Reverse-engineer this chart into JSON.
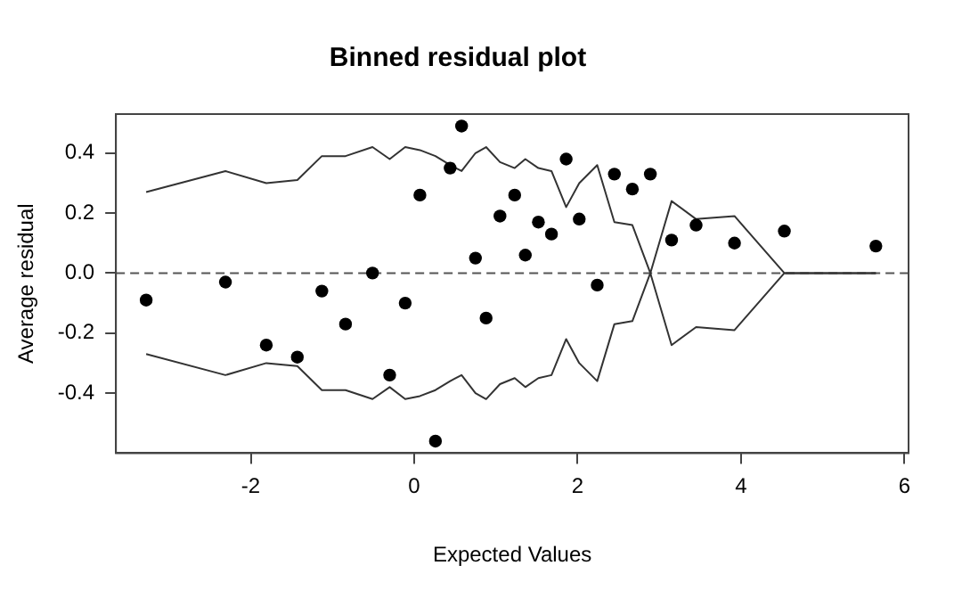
{
  "chart_data": {
    "type": "scatter",
    "title": "Binned residual plot",
    "xlabel": "Expected Values",
    "ylabel": "Average residual",
    "x": [
      -3.28,
      -2.31,
      -1.81,
      -1.43,
      -1.13,
      -0.84,
      -0.51,
      -0.3,
      -0.11,
      0.07,
      0.26,
      0.44,
      0.58,
      0.75,
      0.88,
      1.05,
      1.23,
      1.36,
      1.52,
      1.68,
      1.86,
      2.02,
      2.24,
      2.45,
      2.67,
      2.89,
      3.15,
      3.45,
      3.92,
      4.53,
      5.65
    ],
    "series": [
      {
        "color": "#000000",
        "marker": "circle",
        "values": [
          -0.09,
          -0.03,
          -0.24,
          -0.28,
          -0.06,
          -0.17,
          0.0,
          -0.34,
          -0.1,
          0.26,
          -0.56,
          0.35,
          0.49,
          0.05,
          -0.15,
          0.19,
          0.26,
          0.06,
          0.17,
          0.13,
          0.38,
          0.18,
          -0.04,
          0.33,
          0.28,
          0.33,
          0.11,
          0.16,
          0.1,
          0.14,
          0.09
        ]
      },
      {
        "type": "line",
        "color": "#333333",
        "marker": "none",
        "values": [
          0.27,
          0.34,
          0.3,
          0.31,
          0.39,
          0.39,
          0.42,
          0.38,
          0.42,
          0.41,
          0.39,
          0.36,
          0.34,
          0.4,
          0.42,
          0.37,
          0.35,
          0.38,
          0.35,
          0.34,
          0.22,
          0.3,
          0.36,
          0.17,
          0.16,
          0.0,
          0.24,
          0.18,
          0.19,
          0.0,
          0.0
        ]
      },
      {
        "type": "line",
        "color": "#333333",
        "marker": "none",
        "values": [
          -0.27,
          -0.34,
          -0.3,
          -0.31,
          -0.39,
          -0.39,
          -0.42,
          -0.38,
          -0.42,
          -0.41,
          -0.39,
          -0.36,
          -0.34,
          -0.4,
          -0.42,
          -0.37,
          -0.35,
          -0.38,
          -0.35,
          -0.34,
          -0.22,
          -0.3,
          -0.36,
          -0.17,
          -0.16,
          0.0,
          -0.24,
          -0.18,
          -0.19,
          0.0,
          0.0
        ]
      }
    ],
    "xlim": [
      -3.65,
      6.05
    ],
    "ylim": [
      -0.6,
      0.53
    ],
    "xticks": [
      -2,
      0,
      2,
      4,
      6
    ],
    "yticks": [
      -0.4,
      -0.2,
      {
        "value": 0,
        "label": "0.0"
      },
      0.2,
      0.4
    ],
    "ref_lines": [
      {
        "axis": "y",
        "value": 0,
        "color": "#555555",
        "line_style": "dashed"
      }
    ],
    "grid": false,
    "legend": false
  }
}
